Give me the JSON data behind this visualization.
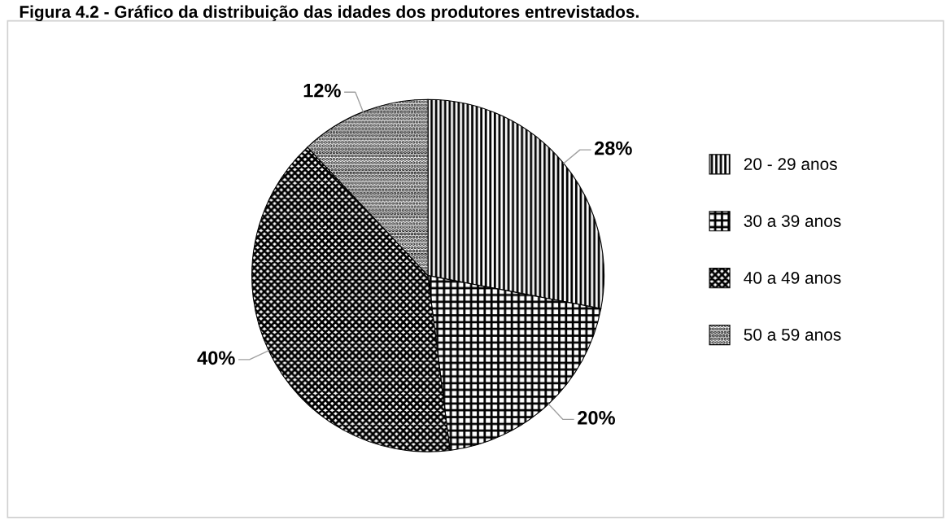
{
  "chart_data": {
    "type": "pie",
    "title": "Figura 4.2 - Gráfico da distribuição das idades dos produtores entrevistados.",
    "categories": [
      "20 - 29 anos",
      "30 a 39 anos",
      "40 a 49 anos",
      "50 a 59 anos"
    ],
    "values": [
      28,
      20,
      40,
      12
    ],
    "colors": [
      "#000000",
      "#000000",
      "#000000",
      "#000000"
    ],
    "value_labels": [
      "28%",
      "20%",
      "40%",
      "12%"
    ],
    "legend": "right"
  }
}
